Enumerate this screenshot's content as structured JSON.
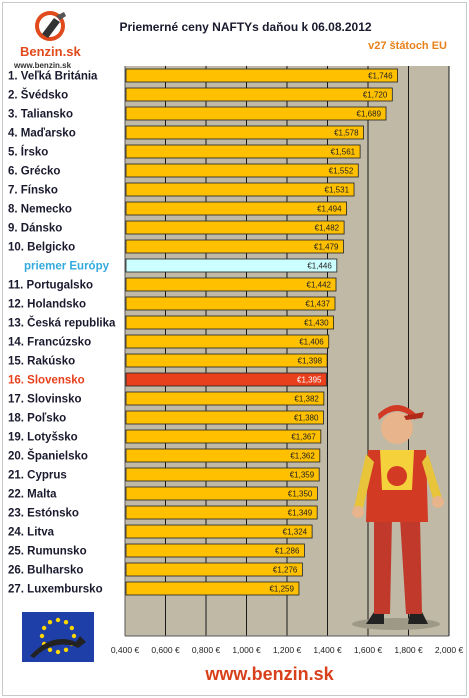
{
  "header": {
    "logo_text": "Benzin.sk",
    "logo_url": "www.benzin.sk"
  },
  "footer": {
    "url": "www.benzin.sk"
  },
  "colors": {
    "plot_bg": "#bfb9a6",
    "bar": "#ffc000",
    "bar_avg": "#ccffff",
    "bar_highlight": "#e8401c",
    "label_avg": "#33aadd",
    "label_highlight": "#e8401c",
    "gridline": "#1a1a1a"
  },
  "chart_data": {
    "type": "bar",
    "orientation": "horizontal",
    "title": "Priemerné ceny NAFTYs daňou k 06.08.2012",
    "subtitle": "v27 štátoch EU",
    "xlim": [
      0.4,
      2.0
    ],
    "x_ticks": [
      "0,400 €",
      "0,600 €",
      "0,800 €",
      "1,000 €",
      "1,200 €",
      "1,400 €",
      "1,600 €",
      "1,800 €",
      "2,000 €"
    ],
    "x_tick_values": [
      0.4,
      0.6,
      0.8,
      1.0,
      1.2,
      1.4,
      1.6,
      1.8,
      2.0
    ],
    "grid": "vertical gridlines",
    "categories": [
      "1. Veľká Británia",
      "2. Švédsko",
      "3. Taliansko",
      "4. Maďarsko",
      "5. Írsko",
      "6. Grécko",
      "7. Fínsko",
      "8. Nemecko",
      "9. Dánsko",
      "10. Belgicko",
      "priemer Európy",
      "11. Portugalsko",
      "12. Holandsko",
      "13. Česká republika",
      "14. Francúzsko",
      "15. Rakúsko",
      "16. Slovensko",
      "17. Slovinsko",
      "18. Poľsko",
      "19. Lotyšsko",
      "20. Španielsko",
      "21. Cyprus",
      "22. Malta",
      "23. Estónsko",
      "24. Litva",
      "25. Rumunsko",
      "26. Bulharsko",
      "27. Luxembursko"
    ],
    "values": [
      1.746,
      1.72,
      1.689,
      1.578,
      1.561,
      1.552,
      1.531,
      1.494,
      1.482,
      1.479,
      1.446,
      1.442,
      1.437,
      1.43,
      1.406,
      1.398,
      1.395,
      1.382,
      1.38,
      1.367,
      1.362,
      1.359,
      1.35,
      1.349,
      1.324,
      1.286,
      1.276,
      1.259
    ],
    "value_labels": [
      "€1,746",
      "€1,720",
      "€1,689",
      "€1,578",
      "€1,561",
      "€1,552",
      "€1,531",
      "€1,494",
      "€1,482",
      "€1,479",
      "€1,446",
      "€1,442",
      "€1,437",
      "€1,430",
      "€1,406",
      "€1,398",
      "€1,395",
      "€1,382",
      "€1,380",
      "€1,367",
      "€1,362",
      "€1,359",
      "€1,350",
      "€1,349",
      "€1,324",
      "€1,286",
      "€1,276",
      "€1,259"
    ],
    "highlight": {
      "average": "priemer Európy",
      "country": "16. Slovensko"
    }
  }
}
